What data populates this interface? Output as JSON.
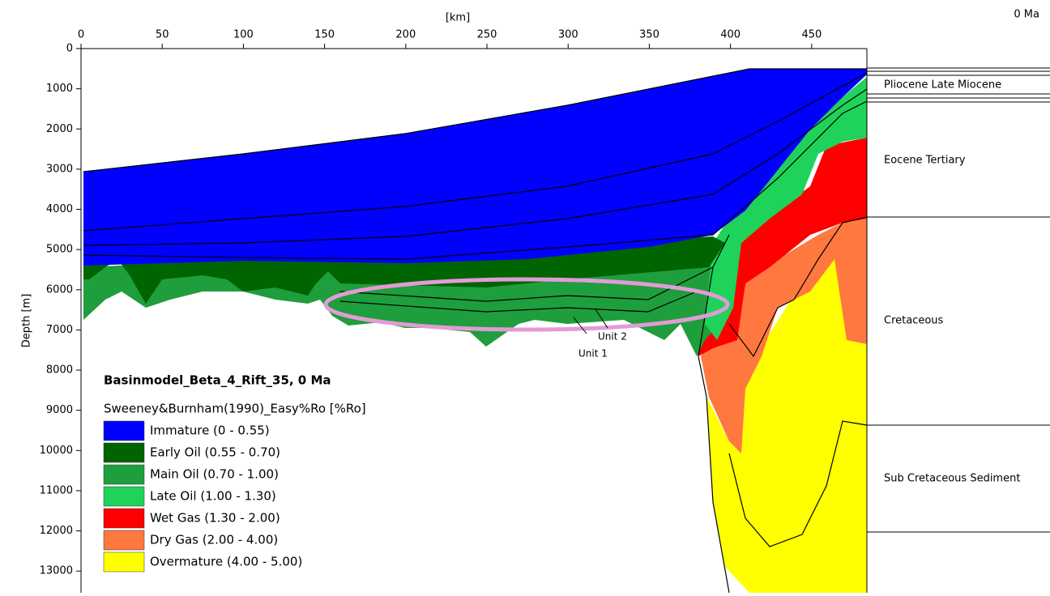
{
  "chart_data": {
    "type": "section",
    "title": "Basinmodel_Beta_4_Rift_35, 0 Ma",
    "subtitle": "Sweeney&Burnham(1990)_Easy%Ro [%Ro]",
    "time_label": "0 Ma",
    "x_label": "[km]",
    "y_label": "Depth [m]",
    "xlim": [
      0,
      484
    ],
    "xticks": [
      0,
      50,
      100,
      150,
      200,
      250,
      300,
      350,
      400,
      450
    ],
    "ylim": [
      0,
      13540
    ],
    "yticks": [
      0,
      1000,
      2000,
      3000,
      4000,
      5000,
      6000,
      7000,
      8000,
      9000,
      10000,
      11000,
      12000,
      13000
    ],
    "legend": [
      {
        "name": "Immature (0 - 0.55)",
        "color": "#0000ff"
      },
      {
        "name": "Early Oil (0.55 - 0.70)",
        "color": "#006400"
      },
      {
        "name": "Main Oil (0.70 - 1.00)",
        "color": "#1e9e3c"
      },
      {
        "name": "Late Oil (1.00 - 1.30)",
        "color": "#1ed25a"
      },
      {
        "name": "Wet Gas (1.30 - 2.00)",
        "color": "#ff0000"
      },
      {
        "name": "Dry Gas (2.00 - 4.00)",
        "color": "#ff7840"
      },
      {
        "name": "Overmature (4.00 - 5.00)",
        "color": "#ffff00"
      }
    ],
    "layers": [
      "Pliocene Late Miocene",
      "Eocene Tertiary",
      "Cretaceous",
      "Sub Cretaceous Sediment"
    ],
    "annotations": [
      "Unit 2",
      "Unit 1"
    ]
  }
}
